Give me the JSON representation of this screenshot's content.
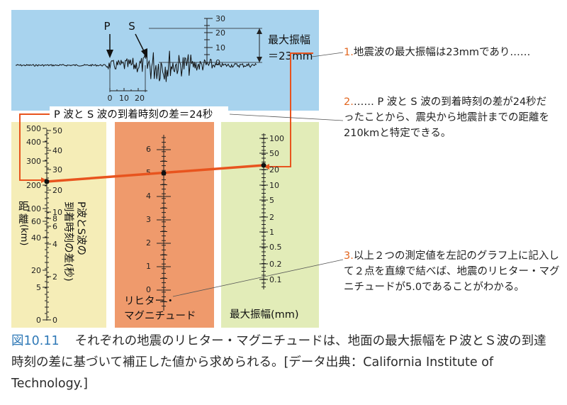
{
  "seismogram": {
    "label_p": "P",
    "label_s": "S",
    "scale_ticks": [
      "30",
      "20",
      "10",
      "0"
    ],
    "time_ticks": [
      "0",
      "10",
      "20"
    ],
    "max_amp_label_1": "最大振幅",
    "max_amp_label_2": "＝23mm"
  },
  "difference_label": "P 波と S 波の到着時刻の差＝24秒",
  "notes": [
    {
      "num": "1.",
      "text": "地震波の最大振幅は23mmであり……"
    },
    {
      "num": "2.",
      "text": "…… P 波と S 波の到着時刻の差が24秒だったことから、震央から地震計までの距離を210kmと特定できる。"
    },
    {
      "num": "3.",
      "text": "以上２つの測定値を左記のグラフ上に記入して２点を直線で結べば、地震のリヒター・マグニチュードが5.0であることがわかる。"
    }
  ],
  "distance_scale": {
    "axis_title_distance": [
      "距",
      "離",
      "(km)"
    ],
    "axis_title_sp": [
      "P波とS波の",
      "到着時刻の差(秒)"
    ],
    "km_ticks": [
      "500",
      "400",
      "300",
      "200",
      "100",
      "60",
      "40",
      "20",
      "5",
      "0"
    ],
    "sec_ticks": [
      "50",
      "40",
      "30",
      "20",
      "10",
      "8",
      "6",
      "4",
      "2",
      "0"
    ]
  },
  "magnitude_scale": {
    "title_1": "リヒター・",
    "title_2": "マグニチュード",
    "ticks": [
      "6",
      "5",
      "4",
      "3",
      "2",
      "1",
      "0"
    ]
  },
  "amplitude_scale": {
    "title": "最大振幅(mm)",
    "ticks": [
      "100",
      "50",
      "20",
      "10",
      "5",
      "2",
      "1",
      "0.5",
      "0.2",
      "0.1"
    ]
  },
  "caption": {
    "fig_label": "図10.11",
    "text": "それぞれの地震のリヒター・マグニチュードは、地面の最大振幅をＰ波とＳ波の到達時刻の差に基づいて補正した値から求められる。[データ出典：California Institute of Technology.]"
  },
  "colors": {
    "seismo_bg": "#a8d3ee",
    "distance_bg": "#f5edb7",
    "magnitude_bg": "#ef9a6c",
    "amplitude_bg": "#e2ecb8",
    "line_accent": "#e8541e",
    "note_number": "#e2661f",
    "caption_label": "#2f79b7"
  }
}
